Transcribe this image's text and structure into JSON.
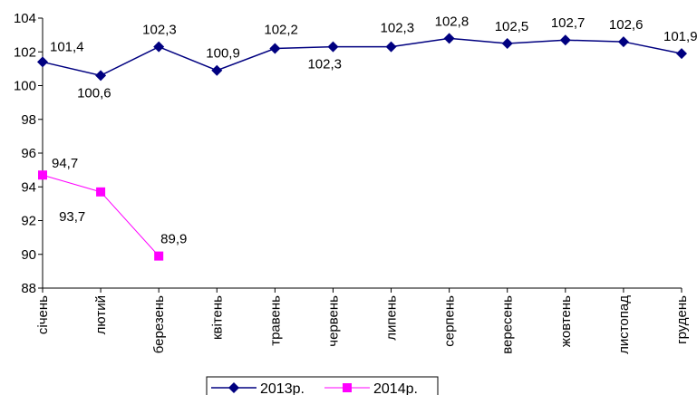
{
  "chart_data": {
    "type": "line",
    "categories": [
      "січень",
      "лютий",
      "березень",
      "квітень",
      "травень",
      "червень",
      "липень",
      "серпень",
      "вересень",
      "жовтень",
      "листопад",
      "грудень"
    ],
    "series": [
      {
        "name": "2013р.",
        "color": "#000080",
        "marker": "diamond",
        "values": [
          101.4,
          100.6,
          102.3,
          100.9,
          102.2,
          102.3,
          102.3,
          102.8,
          102.5,
          102.7,
          102.6,
          101.9
        ],
        "labels": [
          "101,4",
          "100,6",
          "102,3",
          "100,9",
          "102,2",
          "102,3",
          "102,3",
          "102,8",
          "102,5",
          "102,7",
          "102,6",
          "101,9"
        ]
      },
      {
        "name": "2014р.",
        "color": "#ff00ff",
        "marker": "square",
        "values": [
          94.7,
          93.7,
          89.9,
          null,
          null,
          null,
          null,
          null,
          null,
          null,
          null,
          null
        ],
        "labels": [
          "94,7",
          "93,7",
          "89,9"
        ]
      }
    ],
    "ylim": [
      88,
      104
    ],
    "yticks": [
      88,
      90,
      92,
      94,
      96,
      98,
      100,
      102,
      104
    ],
    "grid": false,
    "legend": "bottom"
  }
}
